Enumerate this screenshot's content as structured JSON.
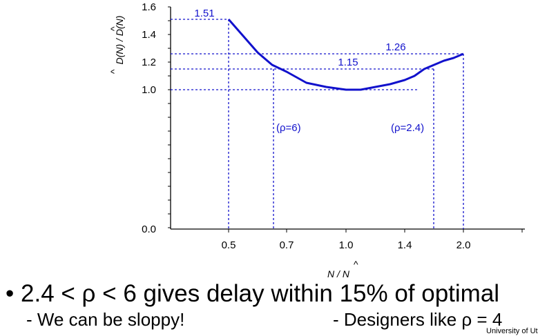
{
  "chart_data": {
    "type": "line",
    "y_tick_labels": [
      "1.6",
      "1.4",
      "1.2",
      "1.0",
      "0.0"
    ],
    "x_tick_labels": [
      "0.5",
      "0.7",
      "1.0",
      "1.4",
      "2.0"
    ],
    "ylabel": "D(N) / D(N)",
    "xlabel": "N / N",
    "series": [
      {
        "x": [
          0.5,
          0.55,
          0.6,
          0.65,
          0.7,
          0.8,
          0.9,
          1.0,
          1.1,
          1.2,
          1.3,
          1.4,
          1.5,
          1.6,
          1.7,
          1.8,
          1.9,
          2.0
        ],
        "y": [
          1.51,
          1.39,
          1.27,
          1.18,
          1.13,
          1.05,
          1.02,
          1.0,
          1.0,
          1.02,
          1.04,
          1.07,
          1.1,
          1.15,
          1.18,
          1.21,
          1.23,
          1.26
        ],
        "color": "#1111cc"
      }
    ],
    "annotations": [
      {
        "text": "1.51",
        "value": 1.51
      },
      {
        "text": "1.26",
        "value": 1.26
      },
      {
        "text": "1.15",
        "value": 1.15
      },
      {
        "text": "(ρ=6)"
      },
      {
        "text": "(ρ=2.4)"
      }
    ],
    "colors": {
      "curve": "#1111cc",
      "guides": "#1111cc",
      "axes": "#000000"
    }
  },
  "slide": {
    "bullet_symbol": "•",
    "bullet_text": "2.4 < ρ < 6 gives delay within 15% of optimal",
    "sub_left": "- We can be sloppy!",
    "sub_right": "- Designers like ρ = 4",
    "footer": "University of Utah | B"
  }
}
